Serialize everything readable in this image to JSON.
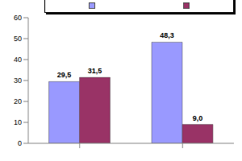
{
  "chart_data": {
    "type": "bar",
    "categories": [
      null,
      null
    ],
    "series": [
      {
        "color": "#9999ff",
        "values": [
          29.5,
          48.3
        ],
        "value_labels": [
          "29,5",
          "48,3"
        ]
      },
      {
        "color": "#993366",
        "values": [
          31.5,
          9.0
        ],
        "value_labels": [
          "31,5",
          "9,0"
        ]
      }
    ],
    "ylim": [
      0,
      60
    ],
    "yticks": [
      0,
      10,
      20,
      30,
      40,
      50,
      60
    ],
    "legend": "top",
    "data_labels": true,
    "grid": false
  }
}
